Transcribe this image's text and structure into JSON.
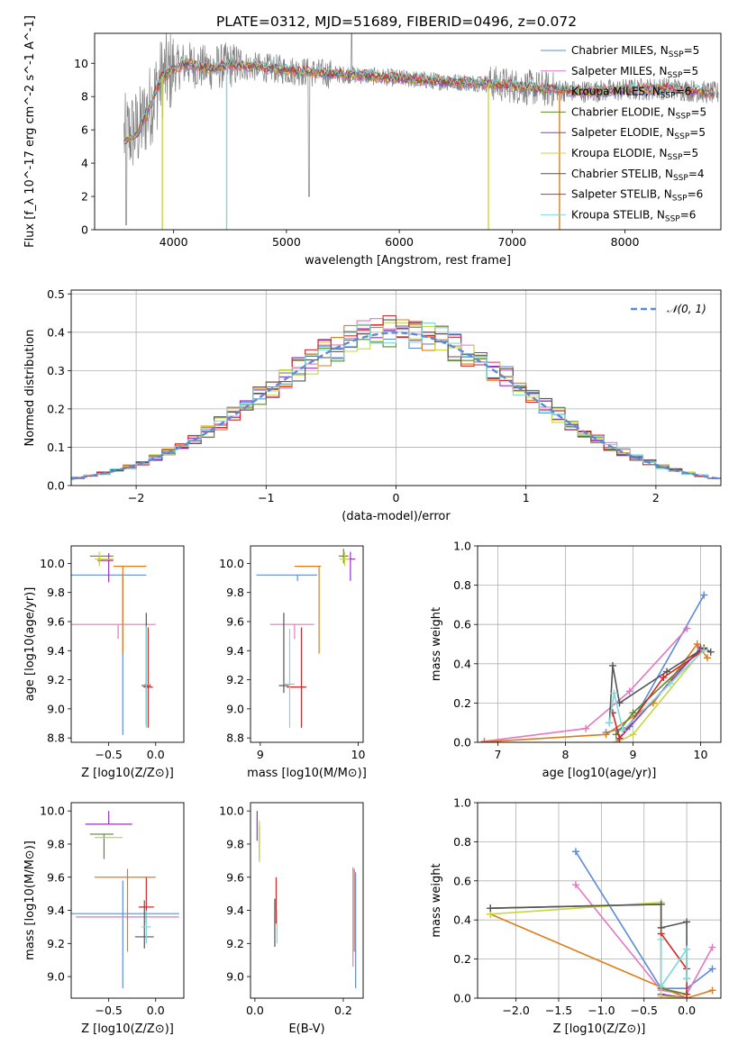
{
  "figure": {
    "title": "PLATE=0312, MJD=51689, FIBERID=0496, z=0.072"
  },
  "models": [
    {
      "name": "Chabrier MILES",
      "nssp": "5",
      "color": "#5b8bd8"
    },
    {
      "name": "Salpeter MILES",
      "nssp": "5",
      "color": "#e377c2"
    },
    {
      "name": "Kroupa MILES",
      "nssp": "6",
      "color": "#e07b1a"
    },
    {
      "name": "Chabrier ELODIE",
      "nssp": "5",
      "color": "#5a8a2a"
    },
    {
      "name": "Salpeter ELODIE",
      "nssp": "5",
      "color": "#9b30c0"
    },
    {
      "name": "Kroupa ELODIE",
      "nssp": "5",
      "color": "#c8d640"
    },
    {
      "name": "Chabrier STELIB",
      "nssp": "4",
      "color": "#555555"
    },
    {
      "name": "Salpeter STELIB",
      "nssp": "6",
      "color": "#d62728"
    },
    {
      "name": "Kroupa STELIB",
      "nssp": "6",
      "color": "#7fd8d8"
    }
  ],
  "chart_data": [
    {
      "id": "spectrum",
      "type": "line",
      "xlabel": "wavelength [Angstrom, rest frame]",
      "ylabel": "Flux [f_λ 10^-17 erg cm^-2 s^-1 A^-1]",
      "xlim": [
        3300,
        8850
      ],
      "ylim": [
        0,
        11.8
      ],
      "xticks": [
        4000,
        5000,
        6000,
        7000,
        8000
      ],
      "yticks": [
        0,
        2,
        4,
        6,
        8,
        10
      ],
      "grid": false,
      "legend": "right",
      "data_series": "observed spectrum (grey)",
      "continuum": {
        "x": [
          3560,
          3700,
          3800,
          3900,
          4000,
          4100,
          4300,
          4500,
          4700,
          5000,
          5300,
          5600,
          6000,
          6400,
          6800,
          7200,
          7600,
          8000,
          8400,
          8800
        ],
        "y": [
          5.6,
          6.1,
          7.6,
          9.2,
          9.6,
          10.0,
          9.7,
          9.9,
          9.8,
          9.6,
          9.4,
          9.3,
          9.1,
          8.9,
          8.8,
          8.5,
          8.3,
          8.4,
          8.5,
          8.2
        ]
      }
    },
    {
      "id": "residuals",
      "type": "step",
      "xlabel": "(data-model)/error",
      "ylabel": "Normed distribution",
      "xlim": [
        -2.5,
        2.5
      ],
      "ylim": [
        0,
        0.51
      ],
      "xticks": [
        -2,
        -1,
        0,
        1,
        2
      ],
      "yticks": [
        0.0,
        0.1,
        0.2,
        0.3,
        0.4,
        0.5
      ],
      "grid": true,
      "legend": "top-right",
      "reference_label": "𝒩(0, 1)",
      "bin_width": 0.1
    },
    {
      "id": "age-vs-Z",
      "type": "errorbar",
      "xlabel": "Z [log10(Z/Z⊙)]",
      "ylabel": "age [log10(age/yr)]",
      "xlim": [
        -0.9,
        0.3
      ],
      "ylim": [
        8.77,
        10.12
      ],
      "xticks": [
        -0.5,
        0.0
      ],
      "yticks": [
        8.8,
        9.0,
        9.2,
        9.4,
        9.6,
        9.8,
        10.0
      ],
      "points": [
        {
          "model": 0,
          "x": -0.35,
          "y": 9.92,
          "xerr": [
            0.55,
            0.25
          ],
          "yerr": [
            1.1,
            0.0
          ]
        },
        {
          "model": 1,
          "x": -0.4,
          "y": 9.58,
          "xerr": [
            0.5,
            0.4
          ],
          "yerr": [
            0.1,
            0.0
          ]
        },
        {
          "model": 2,
          "x": -0.35,
          "y": 9.98,
          "xerr": [
            0.1,
            0.25
          ],
          "yerr": [
            0.6,
            0.0
          ]
        },
        {
          "model": 3,
          "x": -0.6,
          "y": 10.05,
          "xerr": [
            0.1,
            0.15
          ],
          "yerr": [
            0.05,
            0.0
          ]
        },
        {
          "model": 4,
          "x": -0.5,
          "y": 10.02,
          "xerr": [
            0.12,
            0.05
          ],
          "yerr": [
            0.15,
            0.05
          ]
        },
        {
          "model": 5,
          "x": -0.6,
          "y": 10.03,
          "xerr": [
            0.05,
            0.15
          ],
          "yerr": [
            0.05,
            0.05
          ]
        },
        {
          "model": 6,
          "x": -0.1,
          "y": 9.16,
          "xerr": [
            0.05,
            0.05
          ],
          "yerr": [
            0.27,
            0.5
          ]
        },
        {
          "model": 7,
          "x": -0.08,
          "y": 9.15,
          "xerr": [
            0.05,
            0.05
          ],
          "yerr": [
            0.28,
            0.41
          ]
        },
        {
          "model": 8,
          "x": -0.1,
          "y": 9.17,
          "xerr": [
            0.02,
            0.05
          ],
          "yerr": [
            0.3,
            0.4
          ]
        }
      ]
    },
    {
      "id": "age-vs-mass",
      "type": "errorbar",
      "xlabel": "mass [log10(M/M⊙)]",
      "ylabel": "",
      "xlim": [
        8.9,
        10.05
      ],
      "ylim": [
        8.77,
        10.12
      ],
      "xticks": [
        9,
        10
      ],
      "yticks": [
        8.8,
        9.0,
        9.2,
        9.4,
        9.6,
        9.8,
        10.0
      ],
      "points": [
        {
          "model": 0,
          "x": 9.38,
          "y": 9.92,
          "xerr": [
            0.42,
            0.2
          ],
          "yerr": [
            0.04,
            0.0
          ]
        },
        {
          "model": 1,
          "x": 9.35,
          "y": 9.58,
          "xerr": [
            0.25,
            0.2
          ],
          "yerr": [
            0.1,
            0.0
          ]
        },
        {
          "model": 2,
          "x": 9.6,
          "y": 9.98,
          "xerr": [
            0.25,
            0.02
          ],
          "yerr": [
            0.6,
            0.0
          ]
        },
        {
          "model": 3,
          "x": 9.85,
          "y": 10.05,
          "xerr": [
            0.05,
            0.05
          ],
          "yerr": [
            0.05,
            0.05
          ]
        },
        {
          "model": 4,
          "x": 9.92,
          "y": 10.03,
          "xerr": [
            0.05,
            0.05
          ],
          "yerr": [
            0.15,
            0.05
          ]
        },
        {
          "model": 5,
          "x": 9.86,
          "y": 10.03,
          "xerr": [
            0.05,
            0.05
          ],
          "yerr": [
            0.05,
            0.05
          ]
        },
        {
          "model": 6,
          "x": 9.24,
          "y": 9.16,
          "xerr": [
            0.05,
            0.05
          ],
          "yerr": [
            0.05,
            0.5
          ]
        },
        {
          "model": 7,
          "x": 9.42,
          "y": 9.15,
          "xerr": [
            0.15,
            0.05
          ],
          "yerr": [
            0.28,
            0.41
          ]
        },
        {
          "model": 8,
          "x": 9.3,
          "y": 9.17,
          "xerr": [
            0.05,
            0.05
          ],
          "yerr": [
            0.3,
            0.38
          ]
        }
      ]
    },
    {
      "id": "weight-vs-age",
      "type": "line",
      "xlabel": "age [log10(age/yr)]",
      "ylabel": "mass weight",
      "xlim": [
        6.7,
        10.3
      ],
      "ylim": [
        0,
        1.0
      ],
      "xticks": [
        7,
        8,
        9,
        10
      ],
      "yticks": [
        0.0,
        0.2,
        0.4,
        0.6,
        0.8,
        1.0
      ],
      "grid": true,
      "series": [
        {
          "model": 0,
          "x": [
            8.6,
            8.95,
            10.05
          ],
          "y": [
            0.05,
            0.08,
            0.75
          ]
        },
        {
          "model": 1,
          "x": [
            6.8,
            8.3,
            8.95,
            9.8
          ],
          "y": [
            0.005,
            0.07,
            0.26,
            0.58
          ]
        },
        {
          "model": 2,
          "x": [
            6.8,
            8.6,
            9.3,
            9.95,
            10.1
          ],
          "y": [
            0.002,
            0.04,
            0.2,
            0.5,
            0.43
          ]
        },
        {
          "model": 3,
          "x": [
            8.75,
            9.0,
            10.0
          ],
          "y": [
            0.04,
            0.15,
            0.47
          ]
        },
        {
          "model": 4,
          "x": [
            8.75,
            8.8,
            10.0
          ],
          "y": [
            0.0,
            0.02,
            0.48
          ]
        },
        {
          "model": 5,
          "x": [
            8.75,
            9.0,
            10.05
          ],
          "y": [
            0.0,
            0.04,
            0.48
          ]
        },
        {
          "model": 6,
          "x": [
            8.65,
            8.7,
            8.8,
            9.5,
            10.05,
            10.15
          ],
          "y": [
            0.1,
            0.39,
            0.2,
            0.36,
            0.48,
            0.46
          ]
        },
        {
          "model": 7,
          "x": [
            8.7,
            8.8,
            9.45,
            10.05
          ],
          "y": [
            0.15,
            0.02,
            0.33,
            0.47
          ]
        },
        {
          "model": 8,
          "x": [
            8.65,
            8.72,
            8.85,
            9.55,
            10.05
          ],
          "y": [
            0.1,
            0.25,
            0.06,
            0.3,
            0.47
          ]
        }
      ]
    },
    {
      "id": "mass-vs-Z",
      "type": "errorbar",
      "xlabel": "Z [log10(Z/Z⊙)]",
      "ylabel": "mass [log10(M/M⊙)]",
      "xlim": [
        -0.9,
        0.3
      ],
      "ylim": [
        8.87,
        10.05
      ],
      "xticks": [
        -0.5,
        0.0
      ],
      "yticks": [
        9.0,
        9.2,
        9.4,
        9.6,
        9.8,
        10.0
      ],
      "points": [
        {
          "model": 0,
          "x": -0.35,
          "y": 9.38,
          "xerr": [
            0.55,
            0.6
          ],
          "yerr": [
            0.45,
            0.2
          ]
        },
        {
          "model": 1,
          "x": -0.4,
          "y": 9.36,
          "xerr": [
            0.45,
            0.65
          ],
          "yerr": [
            0.0,
            0.0
          ]
        },
        {
          "model": 2,
          "x": -0.3,
          "y": 9.6,
          "xerr": [
            0.35,
            0.3
          ],
          "yerr": [
            0.45,
            0.05
          ]
        },
        {
          "model": 3,
          "x": -0.55,
          "y": 9.86,
          "xerr": [
            0.15,
            0.1
          ],
          "yerr": [
            0.15,
            0.0
          ]
        },
        {
          "model": 4,
          "x": -0.5,
          "y": 9.92,
          "xerr": [
            0.25,
            0.25
          ],
          "yerr": [
            0.0,
            0.08
          ]
        },
        {
          "model": 5,
          "x": -0.5,
          "y": 9.84,
          "xerr": [
            0.15,
            0.15
          ],
          "yerr": [
            0.0,
            0.0
          ]
        },
        {
          "model": 6,
          "x": -0.12,
          "y": 9.24,
          "xerr": [
            0.1,
            0.1
          ],
          "yerr": [
            0.07,
            0.22
          ]
        },
        {
          "model": 7,
          "x": -0.1,
          "y": 9.42,
          "xerr": [
            0.08,
            0.08
          ],
          "yerr": [
            0.1,
            0.18
          ]
        },
        {
          "model": 8,
          "x": -0.1,
          "y": 9.3,
          "xerr": [
            0.05,
            0.05
          ],
          "yerr": [
            0.1,
            0.1
          ]
        }
      ]
    },
    {
      "id": "mass-vs-ebv",
      "type": "errorbar",
      "xlabel": "E(B-V)",
      "ylabel": "",
      "xlim": [
        -0.01,
        0.245
      ],
      "ylim": [
        8.87,
        10.05
      ],
      "xticks": [
        0.0,
        0.2
      ],
      "yticks": [
        9.0,
        9.2,
        9.4,
        9.6,
        9.8,
        10.0
      ],
      "points": [
        {
          "model": 3,
          "x": 0.01,
          "y": 9.86,
          "yerr": [
            0.15,
            0.05
          ]
        },
        {
          "model": 4,
          "x": 0.005,
          "y": 9.92,
          "yerr": [
            0.1,
            0.08
          ]
        },
        {
          "model": 5,
          "x": 0.01,
          "y": 9.84,
          "yerr": [
            0.15,
            0.1
          ]
        },
        {
          "model": 6,
          "x": 0.045,
          "y": 9.32,
          "yerr": [
            0.14,
            0.15
          ]
        },
        {
          "model": 7,
          "x": 0.048,
          "y": 9.42,
          "yerr": [
            0.1,
            0.18
          ]
        },
        {
          "model": 8,
          "x": 0.05,
          "y": 9.3,
          "yerr": [
            0.1,
            0.1
          ]
        },
        {
          "model": 0,
          "x": 0.228,
          "y": 9.38,
          "yerr": [
            0.45,
            0.25
          ]
        },
        {
          "model": 1,
          "x": 0.222,
          "y": 9.36,
          "yerr": [
            0.3,
            0.3
          ]
        },
        {
          "model": 2,
          "x": 0.225,
          "y": 9.45,
          "yerr": [
            0.3,
            0.2
          ]
        }
      ]
    },
    {
      "id": "weight-vs-Z",
      "type": "line",
      "xlabel": "Z [log10(Z/Z⊙)]",
      "ylabel": "mass weight",
      "xlim": [
        -2.45,
        0.4
      ],
      "ylim": [
        0,
        1.0
      ],
      "xticks": [
        -2.0,
        -1.5,
        -1.0,
        -0.5,
        0.0
      ],
      "yticks": [
        0.0,
        0.2,
        0.4,
        0.6,
        0.8,
        1.0
      ],
      "grid": true,
      "series": [
        {
          "model": 0,
          "x": [
            -1.3,
            -0.3,
            0.0,
            0.3
          ],
          "y": [
            0.75,
            0.05,
            0.05,
            0.15
          ]
        },
        {
          "model": 1,
          "x": [
            -1.3,
            -0.3,
            0.0,
            0.3
          ],
          "y": [
            0.58,
            0.04,
            0.02,
            0.26
          ]
        },
        {
          "model": 2,
          "x": [
            -2.3,
            0.0,
            0.3
          ],
          "y": [
            0.43,
            0.0,
            0.04
          ]
        },
        {
          "model": 3,
          "x": [
            -2.3,
            -0.3,
            -0.3,
            0.0
          ],
          "y": [
            0.46,
            0.48,
            0.05,
            0.02
          ]
        },
        {
          "model": 4,
          "x": [
            -0.3,
            -0.3,
            0.0
          ],
          "y": [
            0.48,
            0.02,
            0.0
          ]
        },
        {
          "model": 5,
          "x": [
            -2.3,
            -0.3,
            -0.3,
            0.0
          ],
          "y": [
            0.43,
            0.49,
            0.01,
            0.0
          ]
        },
        {
          "model": 6,
          "x": [
            -2.3,
            -0.3,
            -0.3,
            0.0,
            0.0
          ],
          "y": [
            0.46,
            0.48,
            0.36,
            0.39,
            0.1
          ]
        },
        {
          "model": 7,
          "x": [
            -0.3,
            0.0,
            0.0
          ],
          "y": [
            0.33,
            0.15,
            0.02
          ]
        },
        {
          "model": 8,
          "x": [
            -0.3,
            -0.3,
            0.0,
            0.0
          ],
          "y": [
            0.3,
            0.06,
            0.25,
            0.1
          ]
        }
      ]
    }
  ]
}
